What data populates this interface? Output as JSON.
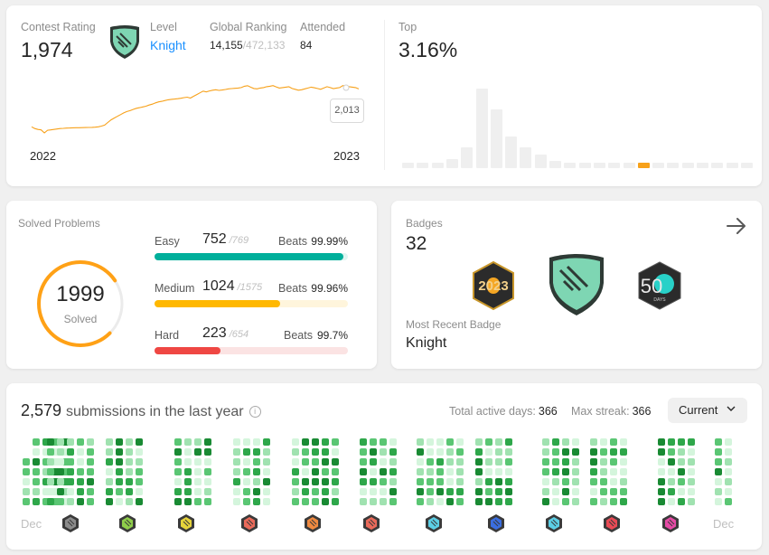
{
  "rating": {
    "contest_rating_label": "Contest Rating",
    "contest_rating_value": "1,974",
    "level_label": "Level",
    "level_value": "Knight",
    "global_ranking_label": "Global Ranking",
    "global_rank": "14,155",
    "global_total": "/472,133",
    "attended_label": "Attended",
    "attended_value": "84",
    "tooltip_value": "2,013",
    "year_start": "2022",
    "year_end": "2023",
    "line_points": [
      1540,
      1520,
      1510,
      1505,
      1470,
      1500,
      1505,
      1510,
      1515,
      1520,
      1522,
      1525,
      1526,
      1528,
      1530,
      1529,
      1531,
      1532,
      1533,
      1534,
      1536,
      1540,
      1548,
      1560,
      1590,
      1620,
      1640,
      1660,
      1680,
      1700,
      1715,
      1725,
      1740,
      1752,
      1760,
      1768,
      1776,
      1790,
      1800,
      1815,
      1826,
      1832,
      1842,
      1850,
      1855,
      1858,
      1862,
      1868,
      1875,
      1880,
      1870,
      1890,
      1910,
      1930,
      1950,
      1940,
      1952,
      1960,
      1965,
      1958,
      1962,
      1968,
      1975,
      1978,
      1982,
      1985,
      1990,
      2005,
      2012,
      1994,
      1980,
      1975,
      1985,
      1990,
      2000,
      2005,
      2013,
      1998,
      1985,
      1990,
      1995,
      2000,
      1980,
      1970,
      1960,
      1965,
      1975,
      1985,
      1995,
      1988,
      1980,
      1970,
      1985,
      2000,
      1990,
      1978,
      1985,
      1990,
      2013,
      2005,
      2000,
      1995,
      1990,
      1974
    ]
  },
  "top": {
    "label": "Top",
    "value": "3.16%",
    "histogram": [
      2,
      2,
      2,
      4,
      9,
      35,
      26,
      14,
      9,
      6,
      3,
      2,
      2,
      2,
      2,
      2,
      2,
      2,
      2,
      2,
      2,
      2,
      2,
      2
    ],
    "highlight_index": 16
  },
  "solved": {
    "title": "Solved Problems",
    "total": "1999",
    "total_label": "Solved",
    "beats_label": "Beats",
    "difficulties": [
      {
        "name": "Easy",
        "solved": "752",
        "total": "/769",
        "beats": "99.99%",
        "progress": 0.978,
        "color": "#00af9b",
        "track": "#e0f5f2"
      },
      {
        "name": "Medium",
        "solved": "1024",
        "total": "/1575",
        "beats": "99.96%",
        "progress": 0.65,
        "color": "#ffb800",
        "track": "#fff5dc"
      },
      {
        "name": "Hard",
        "solved": "223",
        "total": "/654",
        "beats": "99.7%",
        "progress": 0.341,
        "color": "#ef4743",
        "track": "#fbe3e3"
      }
    ]
  },
  "badges": {
    "title": "Badges",
    "count": "32",
    "recent_label": "Most Recent Badge",
    "recent_name": "Knight",
    "badge_year_text": "2023",
    "badge_days_num": "50",
    "badge_days_text": "DAYS"
  },
  "submissions": {
    "count": "2,579",
    "text": "submissions in the last year",
    "active_days_label": "Total active days:",
    "active_days": "366",
    "max_streak_label": "Max streak:",
    "max_streak": "366",
    "dropdown_value": "Current",
    "month_start": "Dec",
    "month_end": "Dec",
    "month_badge_colors": [
      "#8c8c8c",
      "#8fcd4a",
      "#e6d33a",
      "#ea6a5a",
      "#f08a40",
      "#ea6a5a",
      "#5ccfe6",
      "#3a6ee0",
      "#5ccfe6",
      "#ea4a55",
      "#e64aa6"
    ]
  }
}
